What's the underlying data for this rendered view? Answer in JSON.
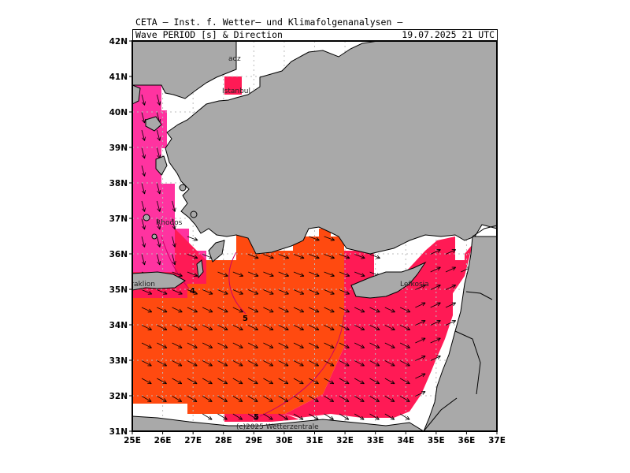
{
  "header": {
    "line1": "CETA — Inst. f. Wetter— und Klimafolgenanalysen —",
    "line2_left": "Wave PERIOD [s] & Direction",
    "line2_right": "19.07.2025 21 UTC"
  },
  "axes": {
    "lat_labels": [
      "42N",
      "41N",
      "40N",
      "39N",
      "38N",
      "37N",
      "36N",
      "35N",
      "34N",
      "33N",
      "32N",
      "31N"
    ],
    "lon_labels": [
      "25E",
      "26E",
      "27E",
      "28E",
      "29E",
      "30E",
      "31E",
      "32E",
      "33E",
      "34E",
      "35E",
      "36E",
      "37E"
    ]
  },
  "contour_labels": {
    "a": "4",
    "b": "5",
    "c": "5"
  },
  "place_labels": {
    "istanbul": "Istanbul",
    "rhodos": "Rhodos",
    "heraklion": "Heraklion",
    "lefkosia": "Lefkosia",
    "bodrum_fragment": "aoz"
  },
  "copyright": "(c)2025 Wetterzentrale",
  "colors": {
    "land": "#a9a9a9",
    "sea_none": "#ffffff",
    "period_3_4": "#ff33a0",
    "period_4_5": "#ff1a55",
    "period_5_6": "#ff4a10",
    "arrow": "#000000",
    "grid": "#888888"
  },
  "chart_data": {
    "type": "map",
    "quantity": "Wave period",
    "unit": "s",
    "lon_range": [
      25,
      37
    ],
    "lat_range": [
      31,
      42
    ],
    "contour_values": [
      4,
      5,
      5
    ],
    "dominant_direction": "toward southeast",
    "grid": true
  }
}
